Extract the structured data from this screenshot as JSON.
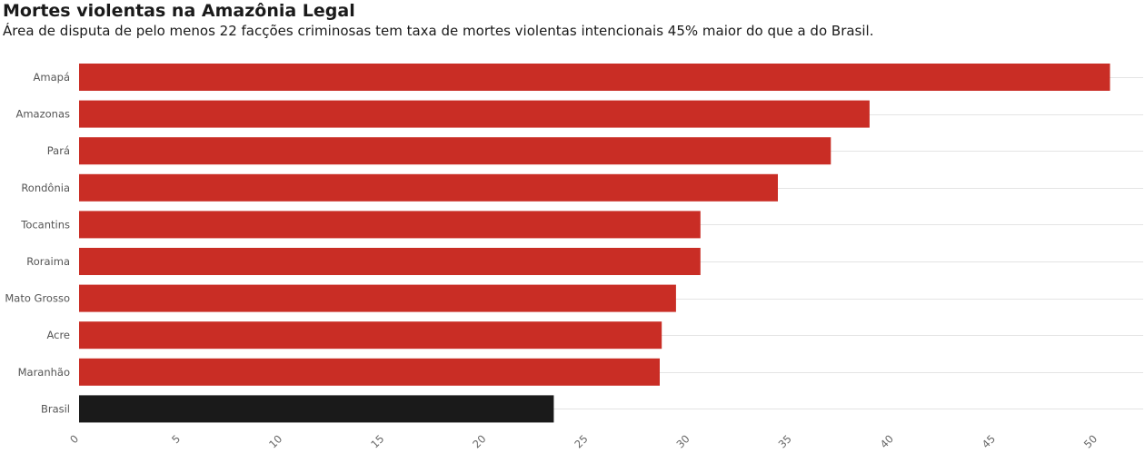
{
  "header": {
    "title": "Mortes violentas na Amazônia Legal",
    "subtitle": "Área de disputa de pelo menos 22 facções criminosas tem taxa de mortes violentas intencionais 45% maior do que a do Brasil."
  },
  "chart_data": {
    "type": "bar",
    "orientation": "horizontal",
    "categories": [
      "Amapá",
      "Amazonas",
      "Pará",
      "Rondônia",
      "Tocantins",
      "Roraima",
      "Mato Grosso",
      "Acre",
      "Maranhão",
      "Brasil"
    ],
    "values": [
      50.6,
      38.8,
      36.9,
      34.3,
      30.5,
      30.5,
      29.3,
      28.6,
      28.5,
      23.3
    ],
    "colors": [
      "#c92d25",
      "#c92d25",
      "#c92d25",
      "#c92d25",
      "#c92d25",
      "#c92d25",
      "#c92d25",
      "#c92d25",
      "#c92d25",
      "#1a1a1a"
    ],
    "xticks": [
      0,
      5,
      10,
      15,
      20,
      25,
      30,
      35,
      40,
      45,
      50
    ],
    "xlim": [
      0,
      52
    ],
    "grid": true,
    "legend": "none"
  }
}
